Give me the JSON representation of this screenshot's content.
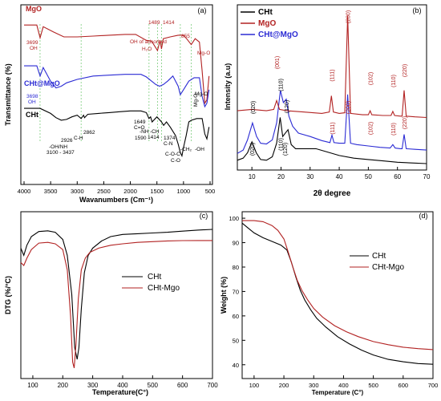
{
  "chart_data": [
    {
      "panel": "(a)",
      "type": "line",
      "xlabel": "Wavanumbers (Cm⁻¹)",
      "ylabel": "Transmittance (%)",
      "xlim": [
        4000,
        500
      ],
      "x_ticks": [
        "4000",
        "3500",
        "3000",
        "2500",
        "2000",
        "1500",
        "1000",
        "500"
      ],
      "grid": false,
      "series": [
        {
          "name": "MgO",
          "color": "#b22222",
          "x": [
            4000,
            3760,
            3699,
            3640,
            3450,
            3250,
            3000,
            2700,
            2400,
            2100,
            1900,
            1700,
            1600,
            1489,
            1440,
            1414,
            1380,
            1250,
            1100,
            1000,
            930,
            855,
            780,
            700,
            650,
            600,
            560,
            520
          ],
          "y": [
            9.0,
            9.0,
            8.25,
            8.9,
            8.6,
            8.3,
            8.3,
            8.35,
            8.4,
            8.45,
            8.45,
            8.1,
            8.05,
            7.5,
            8.1,
            7.6,
            8.2,
            8.3,
            8.4,
            8.4,
            8.15,
            7.85,
            8.2,
            8.0,
            6.3,
            4.4,
            4.6,
            6.0
          ]
        },
        {
          "name": "CHt@MgO",
          "color": "#2b2bd4",
          "x": [
            4000,
            3760,
            3698,
            3640,
            3500,
            3400,
            3300,
            3200,
            3000,
            2700,
            2400,
            2100,
            1800,
            1700,
            1600,
            1520,
            1450,
            1380,
            1300,
            1200,
            1100,
            1060,
            1000,
            900,
            800,
            700,
            650,
            600,
            560,
            520
          ],
          "y": [
            6.6,
            6.6,
            6.0,
            6.5,
            5.7,
            5.3,
            5.4,
            5.6,
            5.8,
            6.0,
            6.05,
            6.1,
            6.1,
            5.95,
            5.7,
            5.5,
            5.4,
            5.5,
            5.7,
            6.0,
            5.4,
            4.9,
            5.2,
            5.7,
            5.9,
            5.9,
            4.8,
            4.2,
            4.4,
            5.2
          ]
        },
        {
          "name": "CHt",
          "color": "#000000",
          "x": [
            4000,
            3700,
            3500,
            3400,
            3300,
            3200,
            3100,
            3000,
            2926,
            2880,
            2862,
            2800,
            2600,
            2400,
            2200,
            2000,
            1800,
            1700,
            1649,
            1620,
            1590,
            1500,
            1414,
            1374,
            1320,
            1250,
            1150,
            1100,
            1060,
            1030,
            1000,
            950,
            900,
            850,
            750,
            650,
            600,
            560,
            520
          ],
          "y": [
            4.1,
            4.1,
            3.8,
            3.55,
            3.4,
            3.45,
            3.6,
            3.7,
            3.5,
            3.7,
            3.55,
            3.75,
            3.8,
            3.85,
            3.9,
            3.95,
            3.95,
            3.85,
            3.5,
            3.6,
            3.3,
            3.6,
            3.3,
            3.1,
            3.3,
            3.0,
            2.5,
            2.0,
            1.5,
            1.3,
            1.8,
            2.5,
            3.3,
            3.4,
            3.5,
            3.5,
            2.6,
            2.3,
            3.0
          ]
        }
      ],
      "annotations": [
        {
          "text": "MgO",
          "color": "#b22222"
        },
        {
          "text": "3699",
          "color": "#b22222"
        },
        {
          "text": "OH",
          "color": "#b22222"
        },
        {
          "text": "OH of adsorbed",
          "color": "#b22222"
        },
        {
          "text": "H₂O",
          "color": "#b22222"
        },
        {
          "text": "1489",
          "color": "#b22222"
        },
        {
          "text": "1414",
          "color": "#b22222"
        },
        {
          "text": "855",
          "color": "#b22222"
        },
        {
          "text": "Mg-O",
          "color": "#b22222"
        },
        {
          "text": "CHt@MgO",
          "color": "#2b2bd4"
        },
        {
          "text": "3698",
          "color": "#2b2bd4"
        },
        {
          "text": "OH",
          "color": "#2b2bd4"
        },
        {
          "text": "Mg-O",
          "color": "#000000"
        },
        {
          "text": "Mg-O",
          "color": "#000000"
        },
        {
          "text": "CHt",
          "color": "#000000"
        },
        {
          "text": "-OH/NH",
          "color": "#000000"
        },
        {
          "text": "3100 - 3437",
          "color": "#000000"
        },
        {
          "text": "2926",
          "color": "#000000"
        },
        {
          "text": "2862",
          "color": "#000000"
        },
        {
          "text": "C-H",
          "color": "#000000"
        },
        {
          "text": "1649",
          "color": "#000000"
        },
        {
          "text": "C=O",
          "color": "#000000"
        },
        {
          "text": "-NH",
          "color": "#000000"
        },
        {
          "text": "1590",
          "color": "#000000"
        },
        {
          "text": "-CH",
          "color": "#000000"
        },
        {
          "text": "1414",
          "color": "#000000"
        },
        {
          "text": "1374",
          "color": "#000000"
        },
        {
          "text": "C-N",
          "color": "#000000"
        },
        {
          "text": "C-O-C",
          "color": "#000000"
        },
        {
          "text": "C-O",
          "color": "#000000"
        },
        {
          "text": "-CH₂",
          "color": "#000000"
        },
        {
          "text": "-OH",
          "color": "#000000"
        }
      ]
    },
    {
      "panel": "(b)",
      "type": "line",
      "xlabel": "2θ degree",
      "ylabel": "Intensity (a.u)",
      "xlim": [
        5,
        70
      ],
      "x_ticks": [
        "10",
        "20",
        "30",
        "40",
        "50",
        "60",
        "70"
      ],
      "legend_position": "top-left",
      "series": [
        {
          "name": "CHt",
          "color": "#000000",
          "x": [
            5,
            7,
            8.5,
            10,
            11.5,
            13,
            15,
            17,
            18.5,
            19.7,
            20.6,
            21.3,
            22.4,
            23.5,
            25,
            28,
            32,
            36,
            40,
            45,
            50,
            55,
            60,
            65,
            70
          ],
          "y": [
            0.05,
            0.08,
            0.16,
            0.32,
            0.16,
            0.06,
            0.05,
            0.1,
            0.3,
            0.68,
            0.4,
            0.44,
            0.5,
            0.28,
            0.22,
            0.22,
            0.22,
            0.17,
            0.12,
            0.08,
            0.06,
            0.04,
            0.02,
            0.01,
            0.0
          ]
        },
        {
          "name": "CHt@MgO",
          "color": "#2b2bd4",
          "x": [
            5,
            7,
            8.5,
            10.2,
            11.6,
            13,
            15,
            17,
            18.5,
            19.8,
            20.8,
            21.8,
            22.7,
            24,
            26,
            30,
            34,
            36.8,
            37.5,
            38.2,
            40,
            41.9,
            42.9,
            43.9,
            46,
            50,
            54,
            57.5,
            58.4,
            59.2,
            61,
            61.6,
            62.3,
            63,
            66,
            70
          ],
          "y": [
            0.15,
            0.2,
            0.35,
            0.6,
            0.4,
            0.3,
            0.29,
            0.35,
            0.6,
            1.08,
            0.9,
            0.95,
            0.7,
            0.55,
            0.45,
            0.4,
            0.34,
            0.31,
            0.42,
            0.31,
            0.3,
            0.3,
            1.02,
            0.3,
            0.28,
            0.26,
            0.24,
            0.23,
            0.28,
            0.23,
            0.22,
            0.22,
            0.43,
            0.22,
            0.21,
            0.2
          ]
        },
        {
          "name": "MgO",
          "color": "#b22222",
          "x": [
            5,
            10,
            15,
            17.5,
            18.5,
            19.5,
            22,
            28,
            34,
            36.6,
            37.3,
            38,
            40,
            41.9,
            42.9,
            43.9,
            48,
            50,
            50.6,
            51.2,
            55,
            57.8,
            58.4,
            59,
            61,
            61.6,
            62.3,
            63,
            66,
            70
          ],
          "y": [
            0.78,
            0.8,
            0.78,
            0.8,
            0.93,
            0.8,
            0.78,
            0.76,
            0.74,
            0.76,
            1.0,
            0.76,
            0.74,
            0.75,
            2.18,
            0.74,
            0.72,
            0.72,
            0.78,
            0.72,
            0.71,
            0.71,
            0.77,
            0.71,
            0.7,
            0.7,
            1.08,
            0.7,
            0.69,
            0.68
          ]
        }
      ],
      "peak_labels": [
        {
          "x": 18.5,
          "text": "(001)",
          "color": "#b22222"
        },
        {
          "x": 37.3,
          "text": "(111)",
          "color": "#b22222"
        },
        {
          "x": 42.9,
          "text": "(200)",
          "color": "#b22222"
        },
        {
          "x": 50.6,
          "text": "(102)",
          "color": "#b22222"
        },
        {
          "x": 58.4,
          "text": "(110)",
          "color": "#b22222"
        },
        {
          "x": 62.3,
          "text": "(220)",
          "color": "#b22222"
        },
        {
          "x": 10.2,
          "text": "(020)",
          "color": "#000000"
        },
        {
          "x": 19.8,
          "text": "(110)",
          "color": "#000000"
        },
        {
          "x": 21.8,
          "text": "(120)",
          "color": "#000000"
        },
        {
          "x": 37.5,
          "text": "(111)",
          "color": "#b22222"
        },
        {
          "x": 42.9,
          "text": "(200)",
          "color": "#b22222"
        },
        {
          "x": 50.6,
          "text": "(102)",
          "color": "#b22222"
        },
        {
          "x": 58.4,
          "text": "(110)",
          "color": "#b22222"
        },
        {
          "x": 62.3,
          "text": "(220)",
          "color": "#b22222"
        },
        {
          "x": 10.0,
          "text": "(020)",
          "color": "#000000"
        },
        {
          "x": 19.7,
          "text": "(110)",
          "color": "#000000"
        },
        {
          "x": 21.3,
          "text": "(120)",
          "color": "#000000"
        }
      ]
    },
    {
      "panel": "(c)",
      "type": "line",
      "xlabel": "Temperature(C°)",
      "ylabel": "DTG (%/°C)",
      "xlim": [
        60,
        700
      ],
      "ylim": [
        -1.0,
        0.1
      ],
      "x_ticks": [
        "100",
        "200",
        "300",
        "400",
        "500",
        "600",
        "700"
      ],
      "legend_position": "center-left",
      "series": [
        {
          "name": "CHt",
          "color": "#000000",
          "x": [
            60,
            70,
            80,
            95,
            120,
            150,
            175,
            200,
            215,
            230,
            240,
            248,
            254,
            262,
            272,
            285,
            300,
            330,
            360,
            400,
            450,
            500,
            550,
            600,
            650,
            700
          ],
          "y": [
            -0.13,
            -0.18,
            -0.11,
            -0.05,
            -0.015,
            -0.01,
            -0.02,
            -0.07,
            -0.18,
            -0.45,
            -0.82,
            -0.9,
            -0.82,
            -0.55,
            -0.3,
            -0.18,
            -0.13,
            -0.08,
            -0.05,
            -0.035,
            -0.03,
            -0.025,
            -0.02,
            -0.012,
            -0.005,
            0.0
          ]
        },
        {
          "name": "CHt-Mgo",
          "color": "#b22222",
          "x": [
            60,
            70,
            80,
            95,
            120,
            150,
            175,
            200,
            215,
            226,
            233,
            238,
            244,
            252,
            262,
            275,
            290,
            320,
            360,
            400,
            450,
            500,
            550,
            600,
            650,
            700
          ],
          "y": [
            -0.23,
            -0.25,
            -0.2,
            -0.14,
            -0.095,
            -0.09,
            -0.1,
            -0.14,
            -0.28,
            -0.6,
            -0.92,
            -0.96,
            -0.8,
            -0.48,
            -0.28,
            -0.2,
            -0.16,
            -0.13,
            -0.11,
            -0.1,
            -0.09,
            -0.085,
            -0.08,
            -0.078,
            -0.077,
            -0.077
          ]
        }
      ]
    },
    {
      "panel": "(d)",
      "type": "line",
      "xlabel": "Temperature (C°)",
      "ylabel": "Weight (%)",
      "xlim": [
        60,
        700
      ],
      "ylim": [
        35,
        102
      ],
      "x_ticks": [
        "100",
        "200",
        "300",
        "400",
        "500",
        "600",
        "700"
      ],
      "y_ticks": [
        "40",
        "50",
        "60",
        "70",
        "80",
        "90",
        "100"
      ],
      "legend_position": "top-right",
      "series": [
        {
          "name": "CHt",
          "color": "#000000",
          "x": [
            60,
            80,
            100,
            130,
            160,
            190,
            210,
            225,
            240,
            255,
            270,
            290,
            310,
            340,
            380,
            420,
            460,
            500,
            550,
            600,
            650,
            700
          ],
          "y": [
            98,
            96,
            94,
            92,
            90.5,
            89,
            87,
            82,
            76,
            70.5,
            66.5,
            62.5,
            59,
            55.5,
            51.5,
            48.5,
            46,
            44,
            42.2,
            41.2,
            40.5,
            40.2
          ]
        },
        {
          "name": "CHt-Mgo",
          "color": "#b22222",
          "x": [
            60,
            80,
            100,
            130,
            160,
            180,
            200,
            215,
            230,
            245,
            260,
            280,
            300,
            330,
            370,
            410,
            450,
            500,
            550,
            600,
            650,
            700
          ],
          "y": [
            99,
            99,
            99,
            98.6,
            97,
            95,
            91.5,
            86,
            80,
            74.5,
            70.5,
            66.5,
            63,
            59.5,
            56,
            53.5,
            51.5,
            49.5,
            48.2,
            47.2,
            46.6,
            46.2
          ]
        }
      ]
    }
  ]
}
